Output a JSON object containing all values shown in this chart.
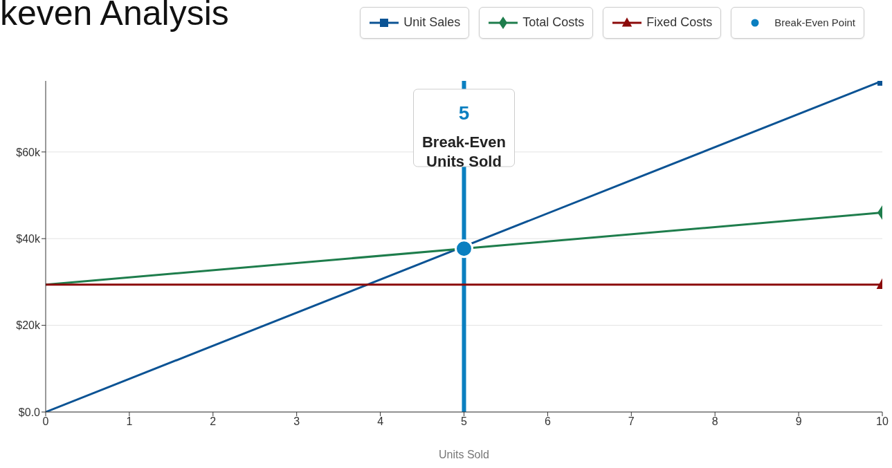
{
  "chart_data": {
    "type": "line",
    "title": "keven Analysis",
    "xlabel": "Units Sold",
    "xlim": [
      0,
      10
    ],
    "xticks": [
      0,
      1,
      2,
      3,
      4,
      5,
      6,
      7,
      8,
      9,
      10
    ],
    "ylim": [
      0,
      76400
    ],
    "yticks": [
      {
        "value": 0,
        "label": "$0.0"
      },
      {
        "value": 20000,
        "label": "$20k"
      },
      {
        "value": 40000,
        "label": "$40k"
      },
      {
        "value": 60000,
        "label": "$60k"
      }
    ],
    "grid": "y",
    "legend": "top right",
    "series": [
      {
        "name": "Unit Sales",
        "color": "#0b5394",
        "x": [
          0,
          10
        ],
        "values": [
          0,
          76400
        ],
        "marker": "square"
      },
      {
        "name": "Total Costs",
        "color": "#1e7d4c",
        "x": [
          0,
          10
        ],
        "values": [
          29400,
          46000
        ],
        "marker": "diamond"
      },
      {
        "name": "Fixed Costs",
        "color": "#8b0a0a",
        "x": [
          0,
          10
        ],
        "values": [
          29400,
          29400
        ],
        "marker": "triangle"
      },
      {
        "name": "Break-Even Point",
        "type": "scatter",
        "color": "#0a7fc0",
        "x": [
          5
        ],
        "values": [
          37700
        ],
        "marker": "circle"
      }
    ],
    "ref_lines": [
      {
        "axis": "x",
        "value": 5,
        "label": "5",
        "color": "#0a7fc0"
      }
    ],
    "annotations": [
      {
        "text": "Break-Even Units Sold",
        "x": 5
      }
    ]
  }
}
